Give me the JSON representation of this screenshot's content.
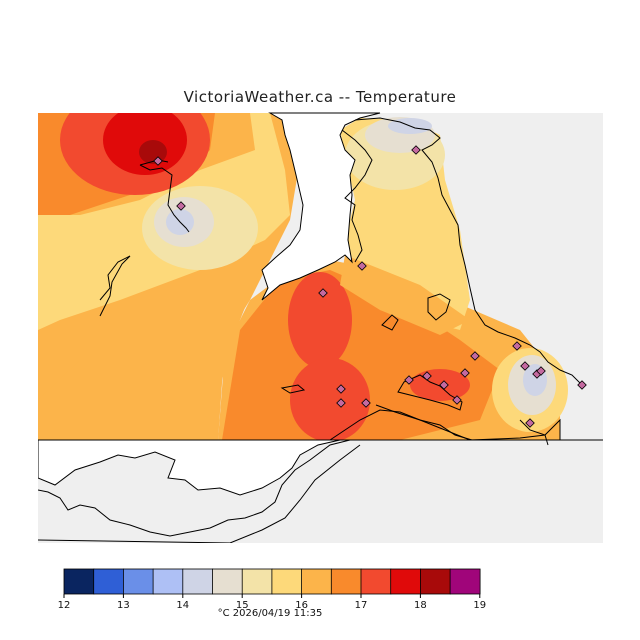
{
  "title": "VictoriaWeather.ca -- Temperature",
  "footer": "°C  2026/04/19 11:35",
  "legend": {
    "ticks": [
      "12",
      "13",
      "14",
      "15",
      "16",
      "17",
      "18",
      "19"
    ],
    "colors": [
      "#0a2560",
      "#2f5fd6",
      "#6a8fe8",
      "#aec0f5",
      "#cfd4e6",
      "#e6dfd1",
      "#f3e3a8",
      "#fdd97a",
      "#fcb44a",
      "#f98a2c",
      "#f24a2f",
      "#e00a0a",
      "#a80a0a",
      "#a0057a"
    ]
  },
  "station_count": 20
}
